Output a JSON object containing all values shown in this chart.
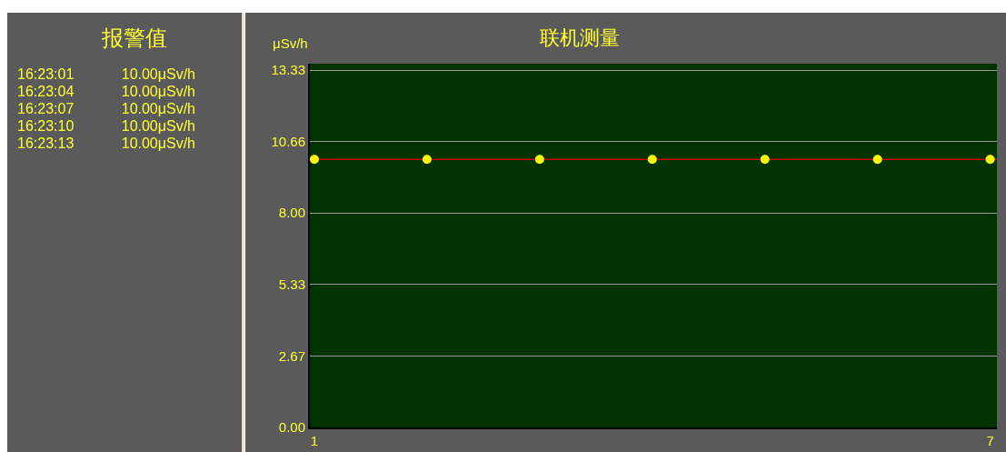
{
  "chart_data": [
    {
      "type": "other",
      "title": "报警值",
      "annotations": [
        "16:23:01",
        "10.00μSv/h",
        "16:23:04",
        "10.00μSv/h",
        "16:23:07",
        "10.00μSv/h",
        "16:23:10",
        "10.00μSv/h",
        "16:23:13",
        "10.00μSv/h"
      ]
    },
    {
      "type": "scatter",
      "title": "联机测量",
      "ylabel": "μSv/h",
      "x": [
        1,
        2,
        3,
        4,
        5,
        6,
        7
      ],
      "series": [
        {
          "color": "#ffff00",
          "values": [
            10,
            10,
            10,
            10,
            10,
            10,
            10
          ]
        }
      ],
      "marker": "circle",
      "grid": "y",
      "ref_lines": [
        {
          "axis": "y",
          "value": 10,
          "color": "#cc0000"
        }
      ],
      "xlim": [
        0.96,
        7.06
      ],
      "xticks": [
        1,
        7
      ],
      "ylim": [
        0,
        13.57
      ],
      "yticks": [
        {
          "value": 0,
          "label": "0.00"
        },
        {
          "value": 2.67,
          "label": "2.67"
        },
        {
          "value": 5.33,
          "label": "5.33"
        },
        {
          "value": 8,
          "label": "8.00"
        },
        {
          "value": 10.66,
          "label": "10.66"
        },
        {
          "value": 13.33,
          "label": "13.33"
        }
      ]
    }
  ]
}
